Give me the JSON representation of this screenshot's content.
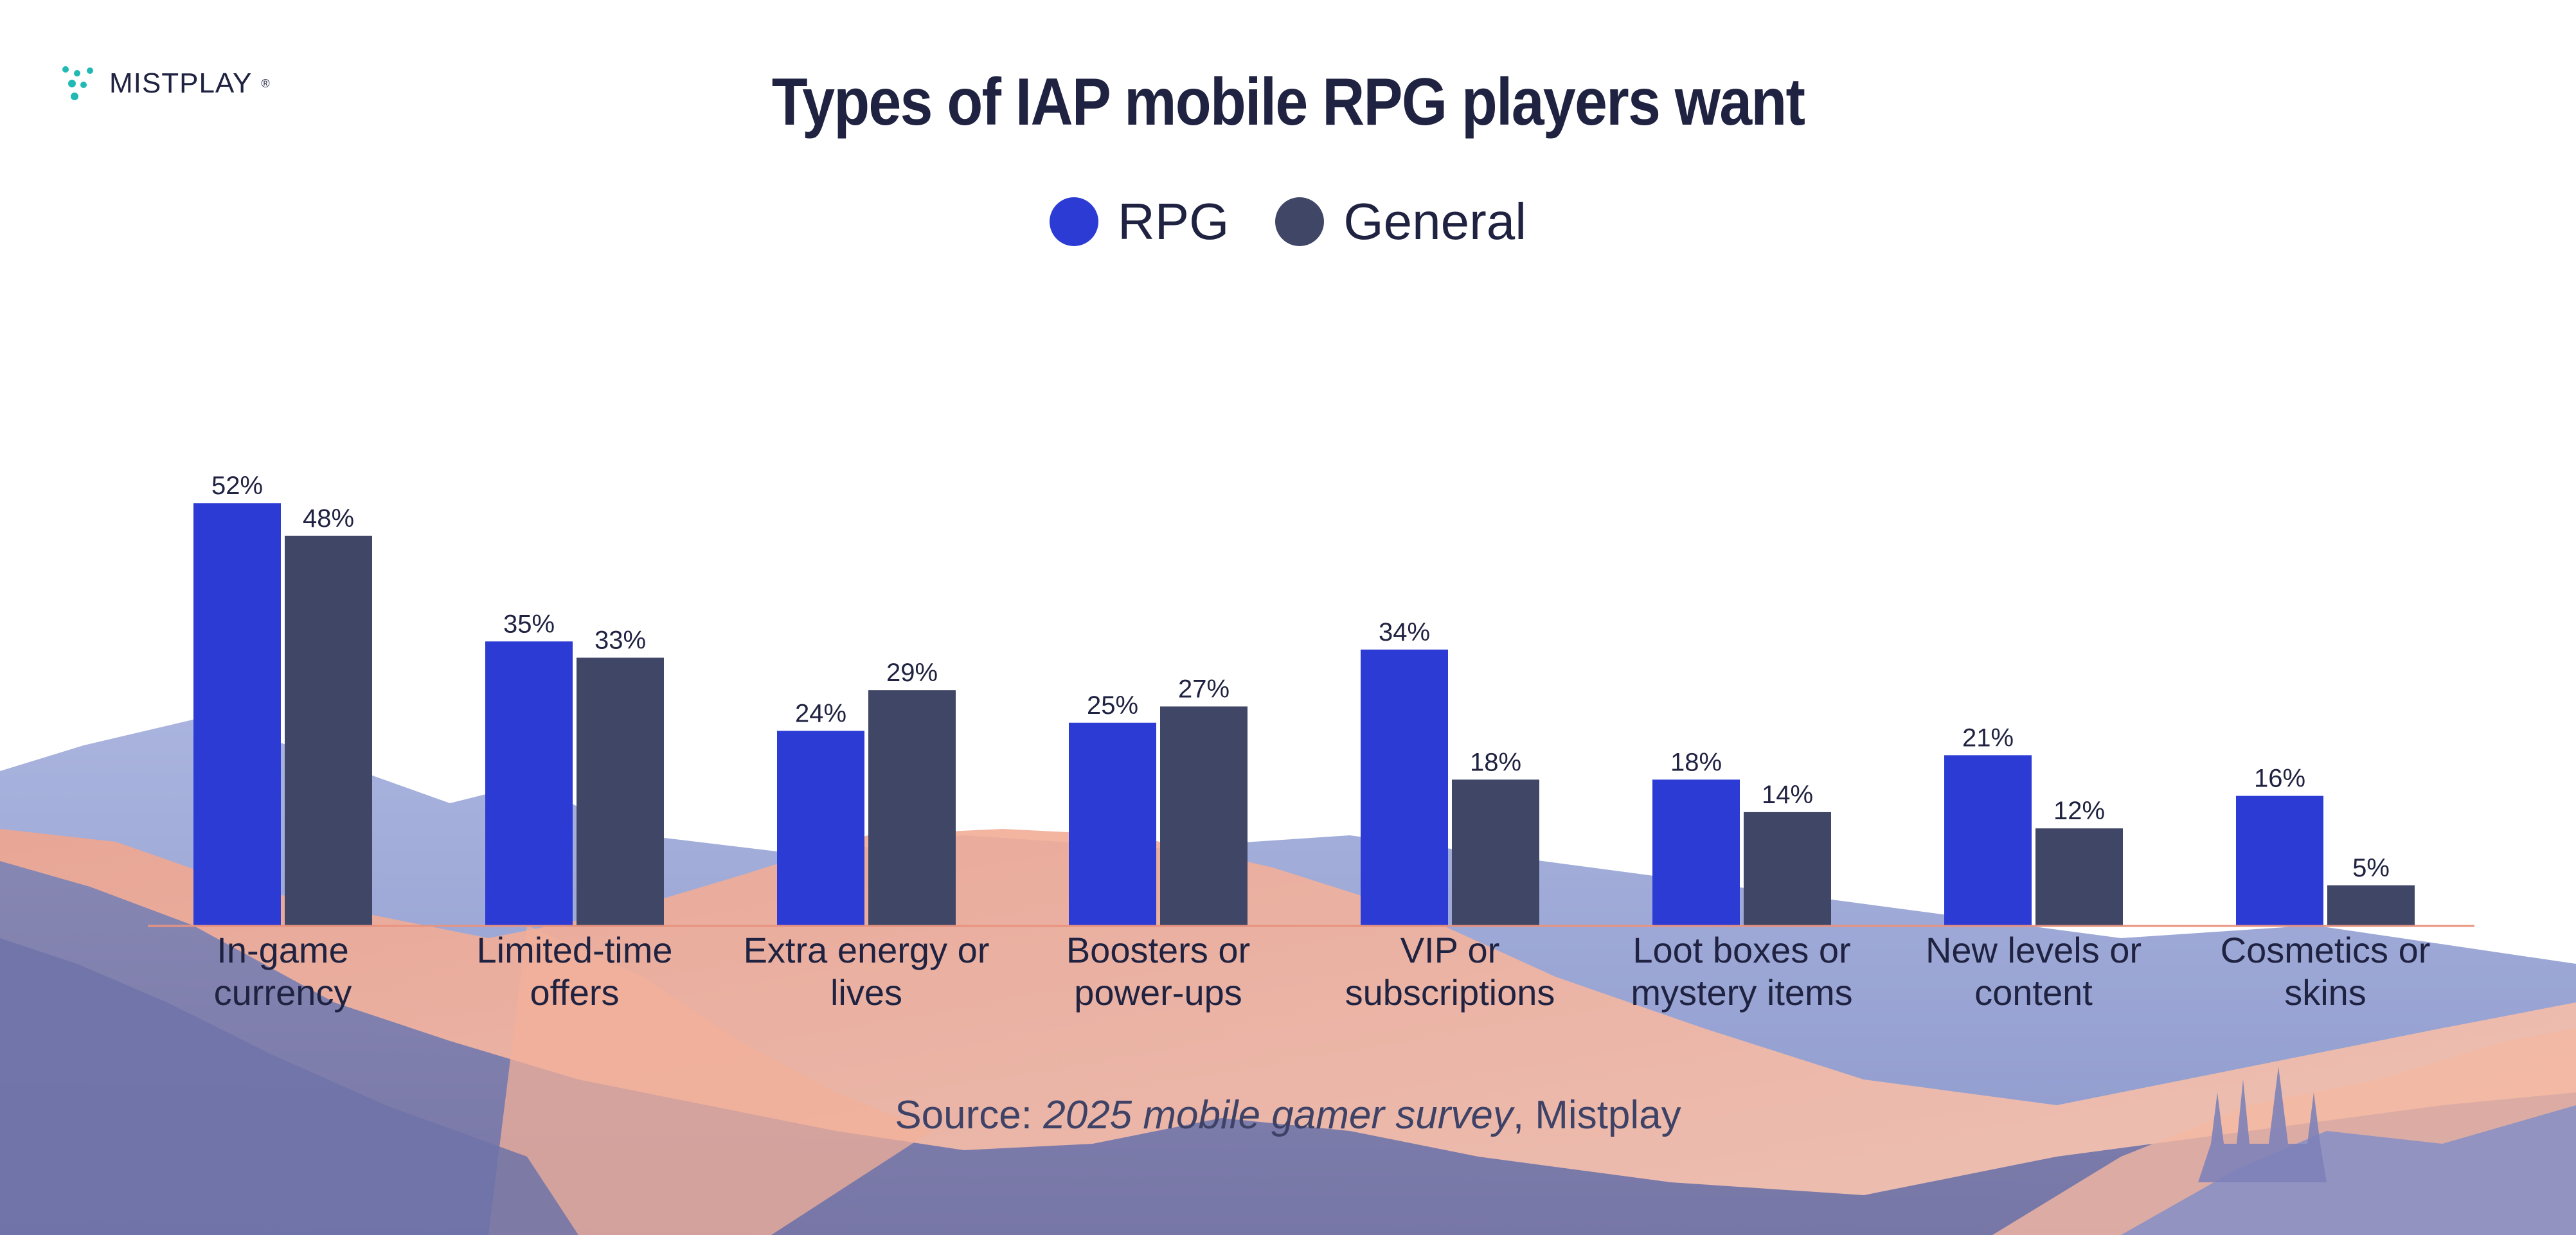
{
  "brand": {
    "name": "MISTPLAY",
    "reg": "®"
  },
  "colors": {
    "rpg": "#2b3bd4",
    "general": "#404666",
    "text": "#1f2240",
    "axis": "#e8937e",
    "logo": "#21b9b3"
  },
  "legend": {
    "rpg_label": "RPG",
    "general_label": "General"
  },
  "source": {
    "prefix": "Source: ",
    "italic": "2025 mobile gamer survey",
    "suffix": ", Mistplay"
  },
  "chart_data": {
    "type": "bar",
    "title": "Types of IAP mobile RPG players want",
    "xlabel": "",
    "ylabel": "",
    "ylim": [
      0,
      52
    ],
    "grid": false,
    "legend_position": "top-center",
    "value_suffix": "%",
    "categories": [
      [
        "In-game",
        "currency"
      ],
      [
        "Limited-time",
        "offers"
      ],
      [
        "Extra energy or",
        "lives"
      ],
      [
        "Boosters or",
        "power-ups"
      ],
      [
        "VIP or",
        "subscriptions"
      ],
      [
        "Loot boxes or",
        "mystery items"
      ],
      [
        "New levels or",
        "content"
      ],
      [
        "Cosmetics or",
        "skins"
      ]
    ],
    "series": [
      {
        "name": "RPG",
        "values": [
          52,
          35,
          24,
          25,
          34,
          18,
          21,
          16
        ]
      },
      {
        "name": "General",
        "values": [
          48,
          33,
          29,
          27,
          18,
          14,
          12,
          5
        ]
      }
    ]
  }
}
